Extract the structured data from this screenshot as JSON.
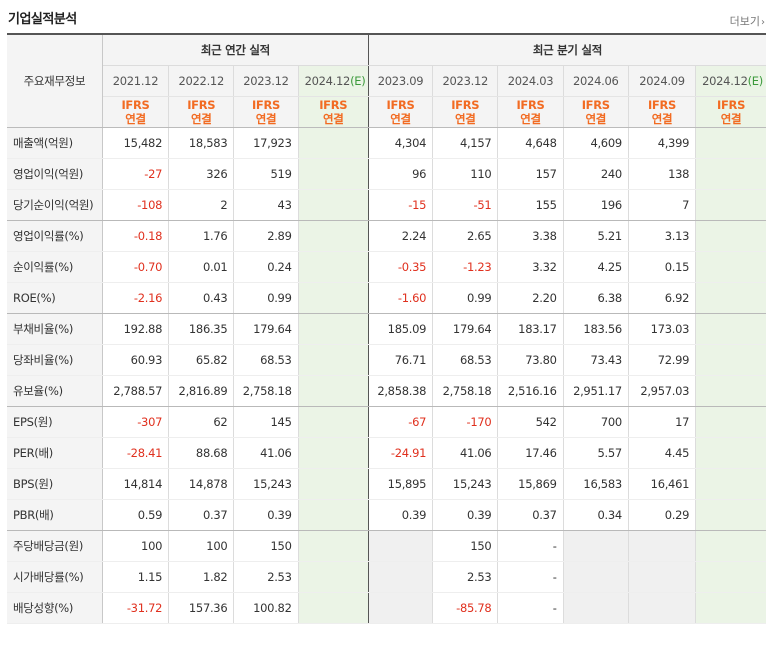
{
  "title": "기업실적분석",
  "more_label": "더보기",
  "more_icon": "chevron-right-icon",
  "header": {
    "row_label": "주요재무정보",
    "annual_group": "최근 연간 실적",
    "quarter_group": "최근 분기 실적",
    "annual_periods": [
      {
        "label": "2021.12",
        "est": ""
      },
      {
        "label": "2022.12",
        "est": ""
      },
      {
        "label": "2023.12",
        "est": ""
      },
      {
        "label": "2024.12",
        "est": "(E)"
      }
    ],
    "quarter_periods": [
      {
        "label": "2023.09",
        "est": ""
      },
      {
        "label": "2023.12",
        "est": ""
      },
      {
        "label": "2024.03",
        "est": ""
      },
      {
        "label": "2024.06",
        "est": ""
      },
      {
        "label": "2024.09",
        "est": ""
      },
      {
        "label": "2024.12",
        "est": "(E)"
      }
    ],
    "ifrs_line1": "IFRS",
    "ifrs_line2": "연결"
  },
  "rows": [
    {
      "label": "매출액(억원)",
      "values": [
        "15,482",
        "18,583",
        "17,923",
        "",
        "4,304",
        "4,157",
        "4,648",
        "4,609",
        "4,399",
        ""
      ]
    },
    {
      "label": "영업이익(억원)",
      "values": [
        "-27",
        "326",
        "519",
        "",
        "96",
        "110",
        "157",
        "240",
        "138",
        ""
      ]
    },
    {
      "label": "당기순이익(억원)",
      "values": [
        "-108",
        "2",
        "43",
        "",
        "-15",
        "-51",
        "155",
        "196",
        "7",
        ""
      ]
    },
    {
      "label": "영업이익률(%)",
      "values": [
        "-0.18",
        "1.76",
        "2.89",
        "",
        "2.24",
        "2.65",
        "3.38",
        "5.21",
        "3.13",
        ""
      ]
    },
    {
      "label": "순이익률(%)",
      "values": [
        "-0.70",
        "0.01",
        "0.24",
        "",
        "-0.35",
        "-1.23",
        "3.32",
        "4.25",
        "0.15",
        ""
      ]
    },
    {
      "label": "ROE(%)",
      "values": [
        "-2.16",
        "0.43",
        "0.99",
        "",
        "-1.60",
        "0.99",
        "2.20",
        "6.38",
        "6.92",
        ""
      ]
    },
    {
      "label": "부채비율(%)",
      "values": [
        "192.88",
        "186.35",
        "179.64",
        "",
        "185.09",
        "179.64",
        "183.17",
        "183.56",
        "173.03",
        ""
      ]
    },
    {
      "label": "당좌비율(%)",
      "values": [
        "60.93",
        "65.82",
        "68.53",
        "",
        "76.71",
        "68.53",
        "73.80",
        "73.43",
        "72.99",
        ""
      ]
    },
    {
      "label": "유보율(%)",
      "values": [
        "2,788.57",
        "2,816.89",
        "2,758.18",
        "",
        "2,858.38",
        "2,758.18",
        "2,516.16",
        "2,951.17",
        "2,957.03",
        ""
      ]
    },
    {
      "label": "EPS(원)",
      "values": [
        "-307",
        "62",
        "145",
        "",
        "-67",
        "-170",
        "542",
        "700",
        "17",
        ""
      ]
    },
    {
      "label": "PER(배)",
      "values": [
        "-28.41",
        "88.68",
        "41.06",
        "",
        "-24.91",
        "41.06",
        "17.46",
        "5.57",
        "4.45",
        ""
      ]
    },
    {
      "label": "BPS(원)",
      "values": [
        "14,814",
        "14,878",
        "15,243",
        "",
        "15,895",
        "15,243",
        "15,869",
        "16,583",
        "16,461",
        ""
      ]
    },
    {
      "label": "PBR(배)",
      "values": [
        "0.59",
        "0.37",
        "0.39",
        "",
        "0.39",
        "0.39",
        "0.37",
        "0.34",
        "0.29",
        ""
      ]
    },
    {
      "label": "주당배당금(원)",
      "values": [
        "100",
        "100",
        "150",
        "",
        "",
        "150",
        "-",
        "",
        "",
        ""
      ]
    },
    {
      "label": "시가배당률(%)",
      "values": [
        "1.15",
        "1.82",
        "2.53",
        "",
        "",
        "2.53",
        "-",
        "",
        "",
        ""
      ]
    },
    {
      "label": "배당성향(%)",
      "values": [
        "-31.72",
        "157.36",
        "100.82",
        "",
        "",
        "-85.78",
        "-",
        "",
        "",
        ""
      ]
    }
  ],
  "colors": {
    "negative": "#e0301e",
    "ifrs": "#f26b22",
    "estimate_bg": "#ebf4e6",
    "estimate_mark": "#3c9a3c"
  }
}
